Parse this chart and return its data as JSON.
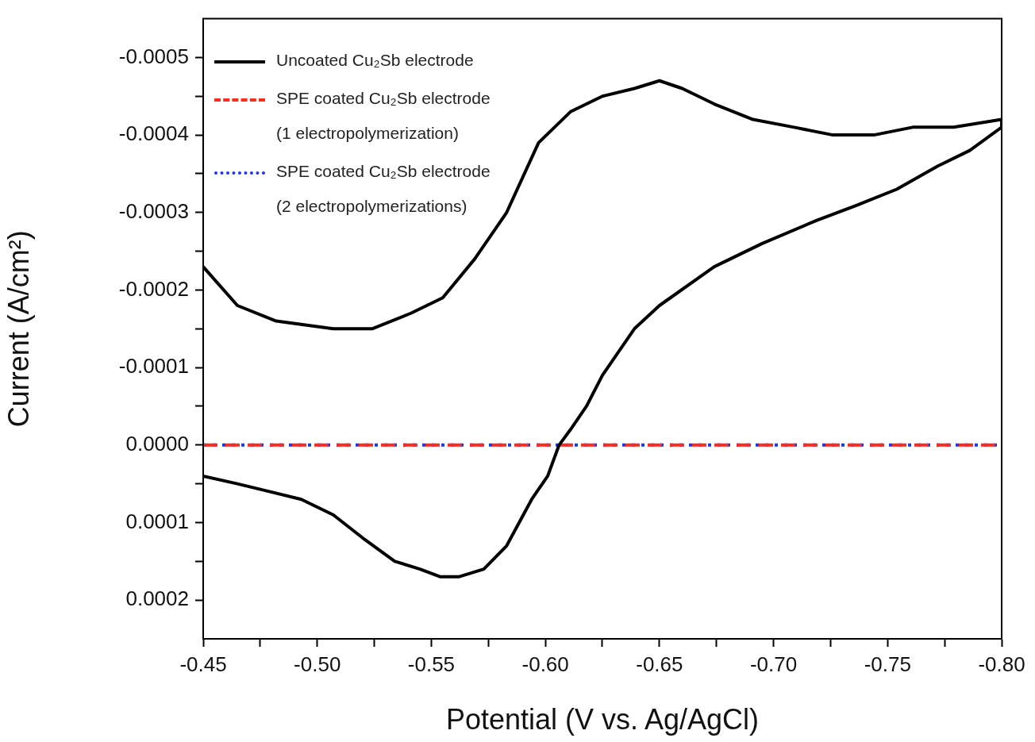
{
  "chart_data": {
    "type": "line",
    "xlabel": "Potential (V vs. Ag/AgCl)",
    "ylabel": "Current (A/cm²)",
    "xlim": [
      -0.45,
      -0.8
    ],
    "ylim": [
      0.00025,
      -0.00055
    ],
    "xticks": [
      {
        "value": -0.45,
        "label": "-0.45"
      },
      {
        "value": -0.475,
        "label": null
      },
      {
        "value": -0.5,
        "label": "-0.50"
      },
      {
        "value": -0.525,
        "label": null
      },
      {
        "value": -0.55,
        "label": "-0.55"
      },
      {
        "value": -0.575,
        "label": null
      },
      {
        "value": -0.6,
        "label": "-0.60"
      },
      {
        "value": -0.625,
        "label": null
      },
      {
        "value": -0.65,
        "label": "-0.65"
      },
      {
        "value": -0.675,
        "label": null
      },
      {
        "value": -0.7,
        "label": "-0.70"
      },
      {
        "value": -0.725,
        "label": null
      },
      {
        "value": -0.75,
        "label": "-0.75"
      },
      {
        "value": -0.775,
        "label": null
      },
      {
        "value": -0.8,
        "label": "-0.80"
      }
    ],
    "yticks": [
      {
        "value": 0.0002,
        "label": "0.0002"
      },
      {
        "value": 0.00015,
        "label": null
      },
      {
        "value": 0.0001,
        "label": "0.0001"
      },
      {
        "value": 5e-05,
        "label": null
      },
      {
        "value": 0,
        "label": "0.0000"
      },
      {
        "value": -5e-05,
        "label": null
      },
      {
        "value": -0.0001,
        "label": "-0.0001"
      },
      {
        "value": -0.00015,
        "label": null
      },
      {
        "value": -0.0002,
        "label": "-0.0002"
      },
      {
        "value": -0.00025,
        "label": null
      },
      {
        "value": -0.0003,
        "label": "-0.0003"
      },
      {
        "value": -0.00035,
        "label": null
      },
      {
        "value": -0.0004,
        "label": "-0.0004"
      },
      {
        "value": -0.00045,
        "label": null
      },
      {
        "value": -0.0005,
        "label": "-0.0005"
      }
    ],
    "grid": false,
    "legend": "top left",
    "marker": "none",
    "series": [
      {
        "name": "Uncoated Cu₂Sb electrode",
        "color": "#000000",
        "line_style": "solid",
        "x": [
          -0.45,
          -0.465,
          -0.482,
          -0.507,
          -0.524,
          -0.541,
          -0.555,
          -0.569,
          -0.583,
          -0.597,
          -0.611,
          -0.625,
          -0.639,
          -0.65,
          -0.66,
          -0.674,
          -0.691,
          -0.709,
          -0.726,
          -0.744,
          -0.761,
          -0.779,
          -0.8,
          -0.8,
          -0.786,
          -0.772,
          -0.754,
          -0.737,
          -0.719,
          -0.695,
          -0.674,
          -0.65,
          -0.639,
          -0.632,
          -0.625,
          -0.618,
          -0.611,
          -0.606,
          -0.601,
          -0.594,
          -0.583,
          -0.573,
          -0.562,
          -0.554,
          -0.545,
          -0.534,
          -0.52,
          -0.507,
          -0.493,
          -0.479,
          -0.465,
          -0.45
        ],
        "values": [
          -0.00023,
          -0.00018,
          -0.00016,
          -0.00015,
          -0.00015,
          -0.00017,
          -0.00019,
          -0.00024,
          -0.0003,
          -0.00039,
          -0.00043,
          -0.00045,
          -0.00046,
          -0.00047,
          -0.00046,
          -0.00044,
          -0.00042,
          -0.00041,
          -0.0004,
          -0.0004,
          -0.00041,
          -0.00041,
          -0.00042,
          -0.00041,
          -0.00038,
          -0.00036,
          -0.00033,
          -0.00031,
          -0.00029,
          -0.00026,
          -0.00023,
          -0.00018,
          -0.00015,
          -0.00012,
          -9e-05,
          -5e-05,
          -2e-05,
          0,
          4e-05,
          7e-05,
          0.00013,
          0.00016,
          0.00017,
          0.00017,
          0.00016,
          0.00015,
          0.00012,
          9e-05,
          7e-05,
          6e-05,
          5e-05,
          4e-05
        ]
      },
      {
        "name": "SPE coated Cu₂Sb electrode\n(1 electropolymerization)",
        "color": "#ff2a1a",
        "line_style": "dashed",
        "x": [
          -0.45,
          -0.8
        ],
        "values": [
          0,
          0
        ]
      },
      {
        "name": "SPE coated Cu₂Sb electrode\n(2 electropolymerizations)",
        "color": "#1a33ff",
        "line_style": "dotted",
        "x": [
          -0.45,
          -0.8
        ],
        "values": [
          0,
          0
        ]
      }
    ]
  }
}
